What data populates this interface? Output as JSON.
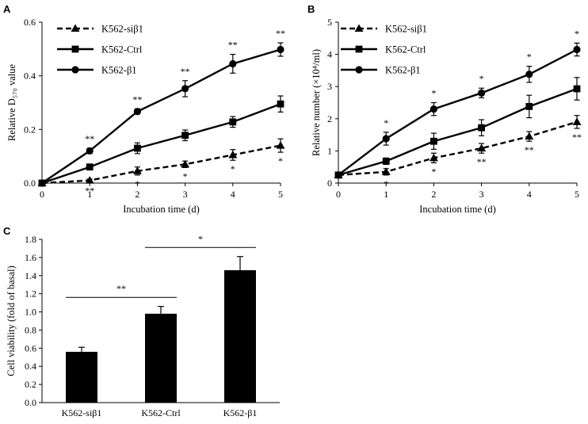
{
  "colors": {
    "ink": "#000000",
    "background": "#ffffff"
  },
  "chart_data": [
    {
      "panel": "A",
      "type": "line",
      "xlabel": "Incubation time (d)",
      "ylabel": "Relative D₅₇₀ value",
      "x": [
        0,
        1,
        2,
        3,
        4,
        5
      ],
      "xticks": [
        "0",
        "1",
        "2",
        "3",
        "4",
        "5"
      ],
      "yticks": [
        "0.0",
        "0.2",
        "0.4",
        "0.6"
      ],
      "ylim": [
        0,
        0.6
      ],
      "legend_position": "top-left",
      "series": [
        {
          "name": "K562-siβ1",
          "marker": "triangle",
          "line": "dashed",
          "values": [
            0,
            0.01,
            0.045,
            0.07,
            0.105,
            0.14
          ],
          "errors": [
            0,
            0.005,
            0.015,
            0.012,
            0.02,
            0.025
          ],
          "significance": [
            "",
            "**",
            "*",
            "*",
            "*",
            "*"
          ],
          "sig_position": "below"
        },
        {
          "name": "K562-Ctrl",
          "marker": "square",
          "line": "solid",
          "values": [
            0,
            0.06,
            0.13,
            0.178,
            0.228,
            0.295
          ],
          "errors": [
            0,
            0.01,
            0.02,
            0.02,
            0.02,
            0.03
          ],
          "significance": [
            "",
            "",
            "",
            "",
            "",
            ""
          ],
          "sig_position": "above"
        },
        {
          "name": "K562-β1",
          "marker": "circle",
          "line": "solid",
          "values": [
            0,
            0.12,
            0.267,
            0.352,
            0.445,
            0.498
          ],
          "errors": [
            0,
            0.01,
            0.01,
            0.03,
            0.035,
            0.025
          ],
          "significance": [
            "",
            "**",
            "**",
            "**",
            "**",
            "**"
          ],
          "sig_position": "above"
        }
      ]
    },
    {
      "panel": "B",
      "type": "line",
      "xlabel": "Incubation time (d)",
      "ylabel": "Relative number (×10⁴/ml)",
      "x": [
        0,
        1,
        2,
        3,
        4,
        5
      ],
      "xticks": [
        "0",
        "1",
        "2",
        "3",
        "4",
        "5"
      ],
      "yticks": [
        "0",
        "1",
        "2",
        "3",
        "4",
        "5"
      ],
      "ylim": [
        0,
        5
      ],
      "legend_position": "top-left",
      "series": [
        {
          "name": "K562-siβ1",
          "marker": "triangle",
          "line": "dashed",
          "values": [
            0.25,
            0.35,
            0.78,
            1.08,
            1.45,
            1.9
          ],
          "errors": [
            0,
            0.1,
            0.15,
            0.15,
            0.15,
            0.2
          ],
          "significance": [
            "",
            "*",
            "*",
            "**",
            "**",
            "**"
          ],
          "sig_position": "below"
        },
        {
          "name": "K562-Ctrl",
          "marker": "square",
          "line": "solid",
          "values": [
            0.25,
            0.68,
            1.3,
            1.72,
            2.38,
            2.93
          ],
          "errors": [
            0,
            0.1,
            0.25,
            0.25,
            0.35,
            0.35
          ],
          "significance": [
            "",
            "",
            "",
            "",
            "",
            ""
          ],
          "sig_position": "above"
        },
        {
          "name": "K562-β1",
          "marker": "circle",
          "line": "solid",
          "values": [
            0.25,
            1.38,
            2.3,
            2.8,
            3.38,
            4.15
          ],
          "errors": [
            0,
            0.2,
            0.2,
            0.15,
            0.25,
            0.2
          ],
          "significance": [
            "",
            "*",
            "*",
            "*",
            "*",
            "*"
          ],
          "sig_position": "above"
        }
      ]
    },
    {
      "panel": "C",
      "type": "bar",
      "ylabel": "Cell viability (fold of basal)",
      "categories": [
        "K562-siβ1",
        "K562-Ctrl",
        "K562-β1"
      ],
      "values": [
        0.56,
        0.98,
        1.46
      ],
      "errors": [
        0.05,
        0.08,
        0.15
      ],
      "yticks": [
        "0.0",
        "0.2",
        "0.4",
        "0.6",
        "0.8",
        "1.0",
        "1.2",
        "1.4",
        "1.6",
        "1.8"
      ],
      "ylim": [
        0,
        1.8
      ],
      "comparisons": [
        {
          "from": 0,
          "to": 1,
          "label": "**",
          "y": 1.16
        },
        {
          "from": 1,
          "to": 2,
          "label": "*",
          "y": 1.71
        }
      ]
    }
  ]
}
